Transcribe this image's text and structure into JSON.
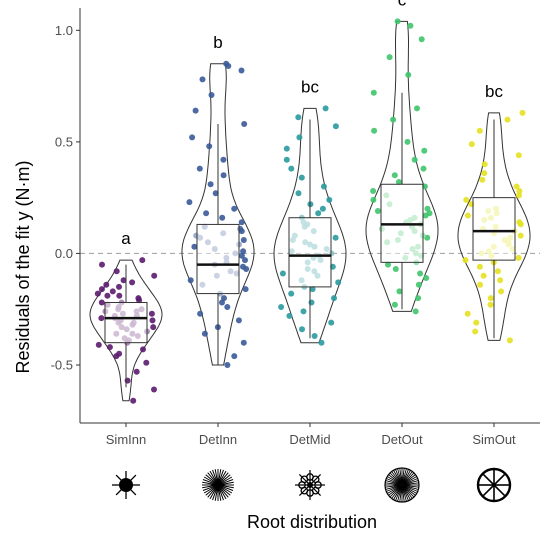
{
  "chart_data": {
    "type": "boxplot",
    "title": "",
    "xlabel": "Root distribution",
    "ylabel": "Residuals of the fit y (N·m)",
    "ylim": [
      -0.76,
      1.1
    ],
    "yticks": [
      -0.5,
      0.0,
      0.5,
      1.0
    ],
    "ytick_labels": [
      "-0.5",
      "0.0",
      "0.5",
      "1.0"
    ],
    "reference_line": 0.0,
    "grid": false,
    "legend": "none",
    "categories": [
      "SimInn",
      "DetInn",
      "DetMid",
      "DetOut",
      "SimOut"
    ],
    "significance_letters": [
      "a",
      "b",
      "bc",
      "c",
      "bc"
    ],
    "colors": [
      "#5b1b6e",
      "#3a5a99",
      "#2a9a9e",
      "#3ec46a",
      "#e4e11f"
    ],
    "icons": [
      "simple-inner-root-icon",
      "detailed-inner-root-icon",
      "detailed-mid-root-icon",
      "detailed-outer-root-icon",
      "simple-outer-root-icon"
    ],
    "boxes": [
      {
        "name": "SimInn",
        "q1": -0.4,
        "median": -0.29,
        "q3": -0.22,
        "whisker_low": -0.6,
        "whisker_high": -0.05,
        "min": -0.66,
        "max": -0.03
      },
      {
        "name": "DetInn",
        "q1": -0.18,
        "median": -0.05,
        "q3": 0.13,
        "whisker_low": -0.5,
        "whisker_high": 0.58,
        "min": -0.5,
        "max": 0.85
      },
      {
        "name": "DetMid",
        "q1": -0.15,
        "median": -0.01,
        "q3": 0.16,
        "whisker_low": -0.38,
        "whisker_high": 0.6,
        "min": -0.4,
        "max": 0.65
      },
      {
        "name": "DetOut",
        "q1": -0.04,
        "median": 0.13,
        "q3": 0.31,
        "whisker_low": -0.25,
        "whisker_high": 0.72,
        "min": -0.26,
        "max": 1.04
      },
      {
        "name": "SimOut",
        "q1": -0.03,
        "median": 0.1,
        "q3": 0.25,
        "whisker_low": -0.38,
        "whisker_high": 0.6,
        "min": -0.39,
        "max": 0.63
      }
    ],
    "points": [
      [
        -0.66,
        -0.61,
        -0.57,
        -0.53,
        -0.49,
        -0.46,
        -0.45,
        -0.43,
        -0.42,
        -0.41,
        -0.4,
        -0.39,
        -0.38,
        -0.37,
        -0.36,
        -0.36,
        -0.35,
        -0.34,
        -0.33,
        -0.33,
        -0.32,
        -0.31,
        -0.31,
        -0.3,
        -0.3,
        -0.29,
        -0.29,
        -0.28,
        -0.28,
        -0.27,
        -0.27,
        -0.26,
        -0.26,
        -0.25,
        -0.25,
        -0.24,
        -0.23,
        -0.23,
        -0.22,
        -0.22,
        -0.21,
        -0.2,
        -0.19,
        -0.19,
        -0.18,
        -0.17,
        -0.16,
        -0.15,
        -0.14,
        -0.13,
        -0.12,
        -0.1,
        -0.08,
        -0.05,
        -0.03
      ],
      [
        -0.5,
        -0.46,
        -0.4,
        -0.36,
        -0.33,
        -0.3,
        -0.27,
        -0.24,
        -0.22,
        -0.2,
        -0.18,
        -0.16,
        -0.14,
        -0.12,
        -0.1,
        -0.09,
        -0.08,
        -0.07,
        -0.06,
        -0.05,
        -0.04,
        -0.03,
        -0.02,
        -0.01,
        0.0,
        0.01,
        0.02,
        0.03,
        0.04,
        0.05,
        0.06,
        0.07,
        0.08,
        0.09,
        0.1,
        0.11,
        0.12,
        0.14,
        0.16,
        0.18,
        0.2,
        0.23,
        0.27,
        0.31,
        0.35,
        0.38,
        0.42,
        0.48,
        0.52,
        0.58,
        0.64,
        0.71,
        0.78,
        0.82,
        0.84,
        0.85
      ],
      [
        -0.4,
        -0.37,
        -0.34,
        -0.31,
        -0.28,
        -0.26,
        -0.24,
        -0.22,
        -0.2,
        -0.18,
        -0.16,
        -0.15,
        -0.13,
        -0.12,
        -0.1,
        -0.09,
        -0.08,
        -0.07,
        -0.06,
        -0.04,
        -0.03,
        -0.02,
        -0.01,
        0.0,
        0.01,
        0.02,
        0.03,
        0.04,
        0.05,
        0.06,
        0.07,
        0.08,
        0.1,
        0.12,
        0.13,
        0.14,
        0.16,
        0.18,
        0.2,
        0.22,
        0.24,
        0.27,
        0.3,
        0.34,
        0.38,
        0.42,
        0.47,
        0.52,
        0.57,
        0.61,
        0.65
      ],
      [
        -0.26,
        -0.23,
        -0.2,
        -0.17,
        -0.14,
        -0.11,
        -0.09,
        -0.07,
        -0.05,
        -0.04,
        -0.02,
        -0.01,
        0.0,
        0.02,
        0.03,
        0.05,
        0.06,
        0.07,
        0.08,
        0.09,
        0.1,
        0.11,
        0.12,
        0.13,
        0.14,
        0.15,
        0.16,
        0.17,
        0.18,
        0.19,
        0.2,
        0.22,
        0.24,
        0.26,
        0.28,
        0.3,
        0.32,
        0.35,
        0.38,
        0.42,
        0.46,
        0.5,
        0.55,
        0.6,
        0.65,
        0.72,
        0.8,
        0.88,
        0.96,
        1.02,
        1.04
      ],
      [
        -0.39,
        -0.35,
        -0.31,
        -0.27,
        -0.23,
        -0.2,
        -0.17,
        -0.14,
        -0.12,
        -0.1,
        -0.08,
        -0.06,
        -0.04,
        -0.03,
        -0.02,
        -0.01,
        0.0,
        0.01,
        0.02,
        0.03,
        0.04,
        0.05,
        0.06,
        0.07,
        0.08,
        0.09,
        0.1,
        0.11,
        0.12,
        0.13,
        0.14,
        0.15,
        0.16,
        0.17,
        0.18,
        0.19,
        0.2,
        0.22,
        0.24,
        0.26,
        0.28,
        0.3,
        0.33,
        0.36,
        0.4,
        0.44,
        0.49,
        0.55,
        0.6,
        0.63
      ]
    ]
  }
}
